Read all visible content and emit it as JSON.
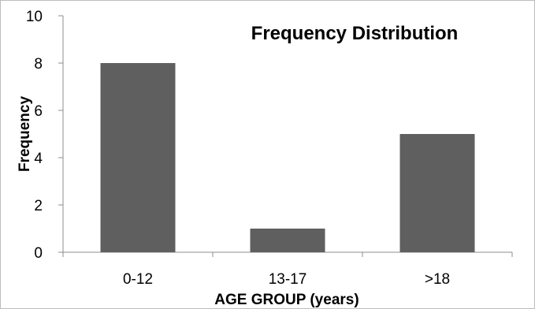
{
  "chart_data": {
    "type": "bar",
    "title": "Frequency Distribution",
    "xlabel": "AGE GROUP (years)",
    "ylabel": "Frequency",
    "categories": [
      "0-12",
      "13-17",
      ">18"
    ],
    "values": [
      8,
      1,
      5
    ],
    "ylim": [
      0,
      10
    ],
    "yticks": [
      0,
      2,
      4,
      6,
      8,
      10
    ],
    "grid": false,
    "legend": "none",
    "bar_color": "#5f5f5f"
  }
}
